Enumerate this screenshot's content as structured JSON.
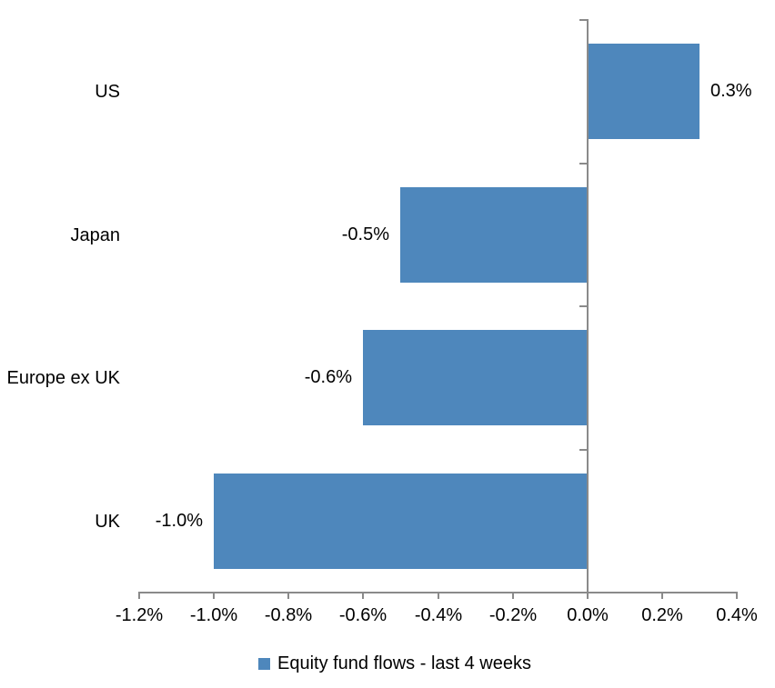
{
  "chart_data": {
    "type": "bar",
    "orientation": "horizontal",
    "title": "",
    "categories": [
      "US",
      "Japan",
      "Europe ex UK",
      "UK"
    ],
    "series": [
      {
        "name": "Equity fund flows - last 4 weeks",
        "values": [
          0.3,
          -0.5,
          -0.6,
          -1.0
        ],
        "data_labels": [
          "0.3%",
          "-0.5%",
          "-0.6%",
          "-1.0%"
        ]
      }
    ],
    "x_axis": {
      "min": -1.2,
      "max": 0.4,
      "tick_step": 0.2,
      "tick_labels": [
        "-1.2%",
        "-1.0%",
        "-0.8%",
        "-0.6%",
        "-0.4%",
        "-0.2%",
        "0.0%",
        "0.2%",
        "0.4%"
      ]
    },
    "grid": false,
    "legend_position": "bottom",
    "legend_label": "Equity fund flows - last 4 weeks",
    "colors": {
      "bar": "#4E87BC",
      "axis": "#8A8A8A",
      "text": "#000000",
      "background": "#FFFFFF"
    }
  }
}
